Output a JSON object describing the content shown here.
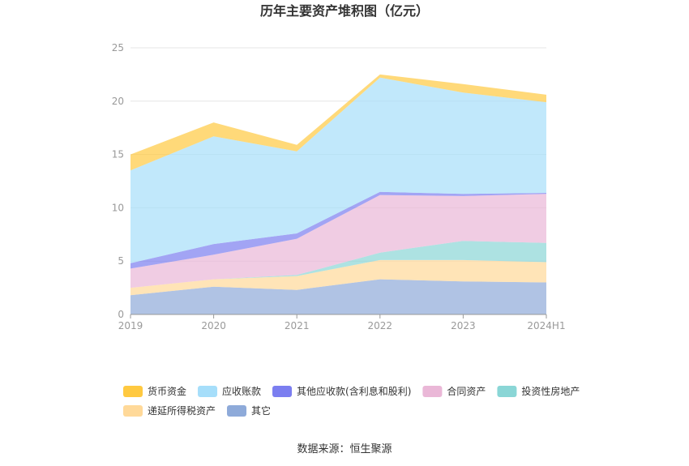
{
  "chart_data": {
    "type": "area",
    "stacked": true,
    "title": "历年主要资产堆积图（亿元）",
    "categories": [
      "2019",
      "2020",
      "2021",
      "2022",
      "2023",
      "2024H1"
    ],
    "ylim": [
      0,
      25
    ],
    "yticks": [
      "0",
      "5",
      "10",
      "15",
      "20",
      "25"
    ],
    "grid": true,
    "legend_position": "bottom",
    "series": [
      {
        "name": "其它",
        "color": "#8eaad9",
        "values": [
          1.8,
          2.6,
          2.3,
          3.3,
          3.1,
          3.0
        ]
      },
      {
        "name": "递延所得税资产",
        "color": "#ffd999",
        "values": [
          0.7,
          0.7,
          1.3,
          1.8,
          2.0,
          1.9
        ]
      },
      {
        "name": "投资性房地产",
        "color": "#8ad6d6",
        "values": [
          0.0,
          0.0,
          0.1,
          0.7,
          1.8,
          1.8
        ]
      },
      {
        "name": "合同资产",
        "color": "#eab7d7",
        "values": [
          1.8,
          2.3,
          3.4,
          5.4,
          4.2,
          4.6
        ]
      },
      {
        "name": "其他应收款(含利息和股利)",
        "color": "#7b7ef0",
        "values": [
          0.5,
          1.0,
          0.5,
          0.3,
          0.2,
          0.1
        ]
      },
      {
        "name": "应收账款",
        "color": "#a6defa",
        "values": [
          8.7,
          10.1,
          7.7,
          10.7,
          9.5,
          8.5
        ]
      },
      {
        "name": "货币资金",
        "color": "#ffc940",
        "values": [
          1.5,
          1.3,
          0.6,
          0.3,
          0.8,
          0.7
        ]
      }
    ],
    "legend_order": [
      "货币资金",
      "应收账款",
      "其他应收款(含利息和股利)",
      "合同资产",
      "投资性房地产",
      "递延所得税资产",
      "其它"
    ]
  },
  "footer": {
    "source": "数据来源：恒生聚源"
  }
}
